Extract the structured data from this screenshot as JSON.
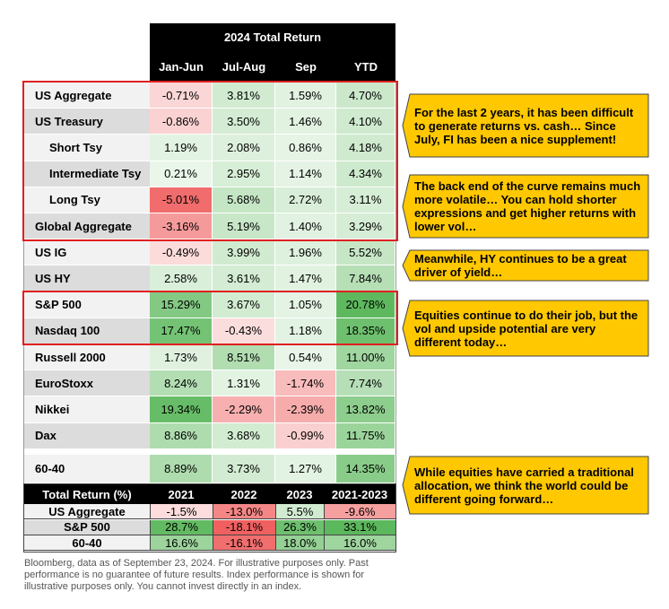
{
  "title": "2024 Total Return",
  "columns": [
    "Jan-Jun",
    "Jul-Aug",
    "Sep",
    "YTD"
  ],
  "rows": [
    {
      "label": "US Aggregate",
      "indent": 0,
      "values": [
        "-0.71%",
        "3.81%",
        "1.59%",
        "4.70%"
      ],
      "nums": [
        -0.71,
        3.81,
        1.59,
        4.7
      ]
    },
    {
      "label": "US Treasury",
      "indent": 0,
      "values": [
        "-0.86%",
        "3.50%",
        "1.46%",
        "4.10%"
      ],
      "nums": [
        -0.86,
        3.5,
        1.46,
        4.1
      ]
    },
    {
      "label": "Short Tsy",
      "indent": 1,
      "values": [
        "1.19%",
        "2.08%",
        "0.86%",
        "4.18%"
      ],
      "nums": [
        1.19,
        2.08,
        0.86,
        4.18
      ]
    },
    {
      "label": "Intermediate Tsy",
      "indent": 1,
      "values": [
        "0.21%",
        "2.95%",
        "1.14%",
        "4.34%"
      ],
      "nums": [
        0.21,
        2.95,
        1.14,
        4.34
      ]
    },
    {
      "label": "Long Tsy",
      "indent": 1,
      "values": [
        "-5.01%",
        "5.68%",
        "2.72%",
        "3.11%"
      ],
      "nums": [
        -5.01,
        5.68,
        2.72,
        3.11
      ]
    },
    {
      "label": "Global Aggregate",
      "indent": 0,
      "values": [
        "-3.16%",
        "5.19%",
        "1.40%",
        "3.29%"
      ],
      "nums": [
        -3.16,
        5.19,
        1.4,
        3.29
      ]
    },
    {
      "label": "US IG",
      "indent": 0,
      "values": [
        "-0.49%",
        "3.99%",
        "1.96%",
        "5.52%"
      ],
      "nums": [
        -0.49,
        3.99,
        1.96,
        5.52
      ]
    },
    {
      "label": "US HY",
      "indent": 0,
      "values": [
        "2.58%",
        "3.61%",
        "1.47%",
        "7.84%"
      ],
      "nums": [
        2.58,
        3.61,
        1.47,
        7.84
      ]
    },
    {
      "label": "S&P 500",
      "indent": 0,
      "values": [
        "15.29%",
        "3.67%",
        "1.05%",
        "20.78%"
      ],
      "nums": [
        15.29,
        3.67,
        1.05,
        20.78
      ]
    },
    {
      "label": "Nasdaq 100",
      "indent": 0,
      "values": [
        "17.47%",
        "-0.43%",
        "1.18%",
        "18.35%"
      ],
      "nums": [
        17.47,
        -0.43,
        1.18,
        18.35
      ]
    },
    {
      "label": "Russell 2000",
      "indent": 0,
      "values": [
        "1.73%",
        "8.51%",
        "0.54%",
        "11.00%"
      ],
      "nums": [
        1.73,
        8.51,
        0.54,
        11.0
      ]
    },
    {
      "label": "EuroStoxx",
      "indent": 0,
      "values": [
        "8.24%",
        "1.31%",
        "-1.74%",
        "7.74%"
      ],
      "nums": [
        8.24,
        1.31,
        -1.74,
        7.74
      ]
    },
    {
      "label": "Nikkei",
      "indent": 0,
      "values": [
        "19.34%",
        "-2.29%",
        "-2.39%",
        "13.82%"
      ],
      "nums": [
        19.34,
        -2.29,
        -2.39,
        13.82
      ]
    },
    {
      "label": "Dax",
      "indent": 0,
      "values": [
        "8.86%",
        "3.68%",
        "-0.99%",
        "11.75%"
      ],
      "nums": [
        8.86,
        3.68,
        -0.99,
        11.75
      ]
    },
    {
      "label": "60-40",
      "indent": 0,
      "values": [
        "8.89%",
        "3.73%",
        "1.27%",
        "14.35%"
      ],
      "nums": [
        8.89,
        3.73,
        1.27,
        14.35
      ]
    }
  ],
  "callouts": [
    "For the last 2 years, it has been difficult to generate returns vs. cash… Since July, FI has been a nice supplement!",
    "The back end of the curve remains much more volatile… You can hold shorter expressions and get higher returns with lower vol…",
    "Meanwhile, HY continues to be a great driver of yield…",
    "Equities continue to do their job, but the vol and upside potential are very different today…",
    "While equities have carried a traditional allocation, we think the world could be different going forward…"
  ],
  "table2": {
    "header": "Total Return (%)",
    "columns": [
      "2021",
      "2022",
      "2023",
      "2021-2023"
    ],
    "rows": [
      {
        "label": "US Aggregate",
        "values": [
          "-1.5%",
          "-13.0%",
          "5.5%",
          "-9.6%"
        ],
        "nums": [
          -1.5,
          -13.0,
          5.5,
          -9.6
        ]
      },
      {
        "label": "S&P 500",
        "values": [
          "28.7%",
          "-18.1%",
          "26.3%",
          "33.1%"
        ],
        "nums": [
          28.7,
          -18.1,
          26.3,
          33.1
        ]
      },
      {
        "label": "60-40",
        "values": [
          "16.6%",
          "-16.1%",
          "18.0%",
          "16.0%"
        ],
        "nums": [
          16.6,
          -16.1,
          18.0,
          16.0
        ]
      }
    ]
  },
  "footnote": "Bloomberg, data as of September 23, 2024. For illustrative purposes only. Past performance is no guarantee of future results. Index performance is shown for illustrative purposes only. You cannot invest directly in an index.",
  "colors": {
    "positive": "#5cb85c",
    "negative": "#f06060",
    "label_bg_a": "#f2f2f2",
    "label_bg_b": "#dcdcdc",
    "callout_fill": "#ffc800",
    "highlight_border": "#e02020"
  },
  "chart_data": {
    "type": "table",
    "title": "2024 Total Return",
    "categories": [
      "Jan-Jun",
      "Jul-Aug",
      "Sep",
      "YTD"
    ],
    "series": [
      {
        "name": "US Aggregate",
        "values": [
          -0.71,
          3.81,
          1.59,
          4.7
        ]
      },
      {
        "name": "US Treasury",
        "values": [
          -0.86,
          3.5,
          1.46,
          4.1
        ]
      },
      {
        "name": "Short Tsy",
        "values": [
          1.19,
          2.08,
          0.86,
          4.18
        ]
      },
      {
        "name": "Intermediate Tsy",
        "values": [
          0.21,
          2.95,
          1.14,
          4.34
        ]
      },
      {
        "name": "Long Tsy",
        "values": [
          -5.01,
          5.68,
          2.72,
          3.11
        ]
      },
      {
        "name": "Global Aggregate",
        "values": [
          -3.16,
          5.19,
          1.4,
          3.29
        ]
      },
      {
        "name": "US IG",
        "values": [
          -0.49,
          3.99,
          1.96,
          5.52
        ]
      },
      {
        "name": "US HY",
        "values": [
          2.58,
          3.61,
          1.47,
          7.84
        ]
      },
      {
        "name": "S&P 500",
        "values": [
          15.29,
          3.67,
          1.05,
          20.78
        ]
      },
      {
        "name": "Nasdaq 100",
        "values": [
          17.47,
          -0.43,
          1.18,
          18.35
        ]
      },
      {
        "name": "Russell 2000",
        "values": [
          1.73,
          8.51,
          0.54,
          11.0
        ]
      },
      {
        "name": "EuroStoxx",
        "values": [
          8.24,
          1.31,
          -1.74,
          7.74
        ]
      },
      {
        "name": "Nikkei",
        "values": [
          19.34,
          -2.29,
          -2.39,
          13.82
        ]
      },
      {
        "name": "Dax",
        "values": [
          8.86,
          3.68,
          -0.99,
          11.75
        ]
      },
      {
        "name": "60-40",
        "values": [
          8.89,
          3.73,
          1.27,
          14.35
        ]
      }
    ]
  }
}
